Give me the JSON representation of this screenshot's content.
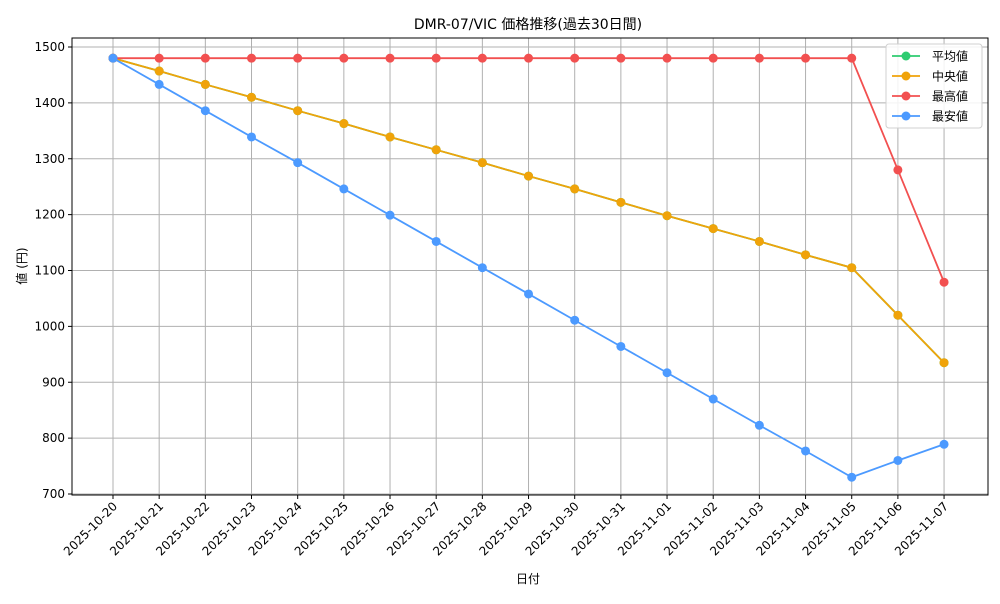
{
  "chart_data": {
    "type": "line",
    "title": "DMR-07/VIC 価格推移(過去30日間)",
    "xlabel": "日付",
    "ylabel": "値 (円)",
    "ylim": [
      695,
      1520
    ],
    "yticks": [
      700,
      800,
      900,
      1000,
      1100,
      1200,
      1300,
      1400,
      1500
    ],
    "grid": true,
    "legend_position": "upper right",
    "categories": [
      "2025-10-20",
      "2025-10-21",
      "2025-10-22",
      "2025-10-23",
      "2025-10-24",
      "2025-10-25",
      "2025-10-26",
      "2025-10-27",
      "2025-10-28",
      "2025-10-29",
      "2025-10-30",
      "2025-10-31",
      "2025-11-01",
      "2025-11-02",
      "2025-11-03",
      "2025-11-04",
      "2025-11-05",
      "2025-11-06",
      "2025-11-07"
    ],
    "series": [
      {
        "name": "平均値",
        "color": "#2ecc71",
        "values": [
          1480,
          1457,
          1433,
          1410,
          1386,
          1363,
          1339,
          1316,
          1293,
          1269,
          1246,
          1222,
          1198,
          1175,
          1152,
          1128,
          1105,
          1020,
          935
        ]
      },
      {
        "name": "中央値",
        "color": "#f0a30a",
        "values": [
          1480,
          1457,
          1433,
          1410,
          1386,
          1363,
          1339,
          1316,
          1293,
          1269,
          1246,
          1222,
          1198,
          1175,
          1152,
          1128,
          1105,
          1020,
          935
        ]
      },
      {
        "name": "最高値",
        "color": "#f25050",
        "values": [
          1480,
          1480,
          1480,
          1480,
          1480,
          1480,
          1480,
          1480,
          1480,
          1480,
          1480,
          1480,
          1480,
          1480,
          1480,
          1480,
          1480,
          1280,
          1079
        ]
      },
      {
        "name": "最安値",
        "color": "#4c9aff",
        "values": [
          1480,
          1433,
          1386,
          1339,
          1293,
          1246,
          1199,
          1152,
          1105,
          1058,
          1011,
          964,
          917,
          870,
          823,
          777,
          730,
          760,
          789
        ]
      }
    ]
  }
}
